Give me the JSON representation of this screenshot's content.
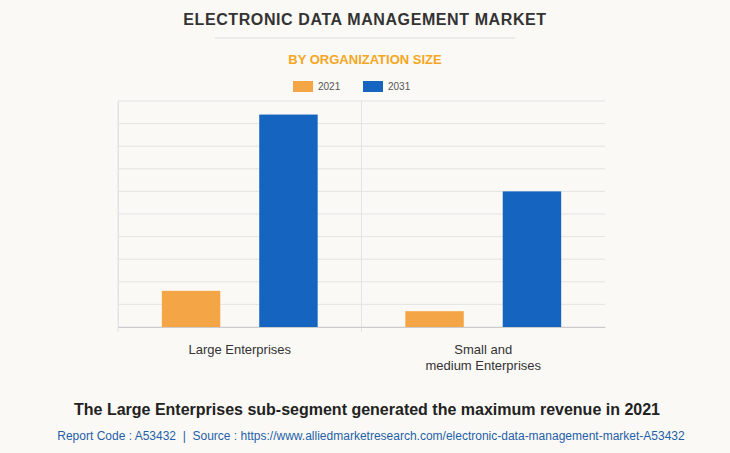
{
  "chart_data": {
    "type": "bar",
    "title": "ELECTRONIC DATA MANAGEMENT MARKET",
    "subtitle": "BY ORGANIZATION SIZE",
    "categories": [
      "Large Enterprises",
      "Small and\nmedium Enterprises"
    ],
    "series": [
      {
        "name": "2021",
        "color": "#f4a545",
        "values": [
          1.6,
          0.7
        ]
      },
      {
        "name": "2031",
        "color": "#1565c0",
        "values": [
          9.4,
          6.0
        ]
      }
    ],
    "ylim": [
      0,
      10
    ],
    "yticks": [
      0,
      1,
      2,
      3,
      4,
      5,
      6,
      7,
      8,
      9,
      10
    ],
    "grid": true,
    "tick_labels": "x",
    "legend": "top",
    "annotations": [
      "The Large Enterprises sub-segment generated the maximum revenue in 2021",
      "Report Code : A53432  |  Source : https://www.alliedmarketresearch.com/electronic-data-management-market-A53432"
    ]
  }
}
